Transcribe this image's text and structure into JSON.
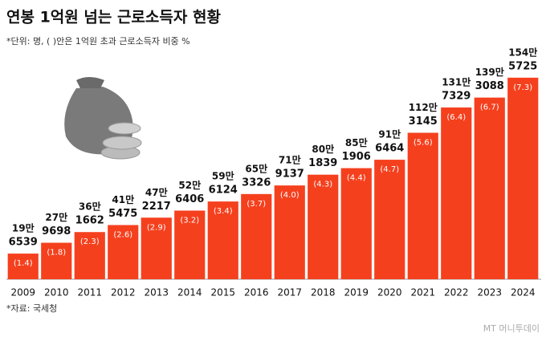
{
  "chart_data": {
    "type": "bar",
    "title": "연봉 1억원 넘는 근로소득자 현황",
    "subtitle": "*단위: 명, ( )안은 1억원 초과 근로소득자 비중 %",
    "source": "*자료: 국세청",
    "watermark": "MT 머니투데이",
    "categories": [
      "2009",
      "2010",
      "2011",
      "2012",
      "2013",
      "2014",
      "2015",
      "2016",
      "2017",
      "2018",
      "2019",
      "2020",
      "2021",
      "2022",
      "2023",
      "2024"
    ],
    "values": [
      196539,
      279698,
      361662,
      415475,
      472217,
      526406,
      596124,
      653326,
      719137,
      801839,
      851906,
      916464,
      1123145,
      1317329,
      1393088,
      1545725
    ],
    "value_labels": [
      [
        "19만",
        "6539"
      ],
      [
        "27만",
        "9698"
      ],
      [
        "36만",
        "1662"
      ],
      [
        "41만",
        "5475"
      ],
      [
        "47만",
        "2217"
      ],
      [
        "52만",
        "6406"
      ],
      [
        "59만",
        "6124"
      ],
      [
        "65만",
        "3326"
      ],
      [
        "71만",
        "9137"
      ],
      [
        "80만",
        "1839"
      ],
      [
        "85만",
        "1906"
      ],
      [
        "91만",
        "6464"
      ],
      [
        "112만",
        "3145"
      ],
      [
        "131만",
        "7329"
      ],
      [
        "139만",
        "3088"
      ],
      [
        "154만",
        "5725"
      ]
    ],
    "shares": [
      1.4,
      1.8,
      2.3,
      2.6,
      2.9,
      3.2,
      3.4,
      3.7,
      4.0,
      4.3,
      4.4,
      4.7,
      5.6,
      6.4,
      6.7,
      7.3
    ],
    "share_labels": [
      "(1.4)",
      "(1.8)",
      "(2.3)",
      "(2.6)",
      "(2.9)",
      "(3.2)",
      "(3.4)",
      "(3.7)",
      "(4.0)",
      "(4.3)",
      "(4.4)",
      "(4.7)",
      "(5.6)",
      "(6.4)",
      "(6.7)",
      "(7.3)"
    ],
    "color": "#f5401e",
    "ylim": [
      0,
      1600000
    ]
  }
}
